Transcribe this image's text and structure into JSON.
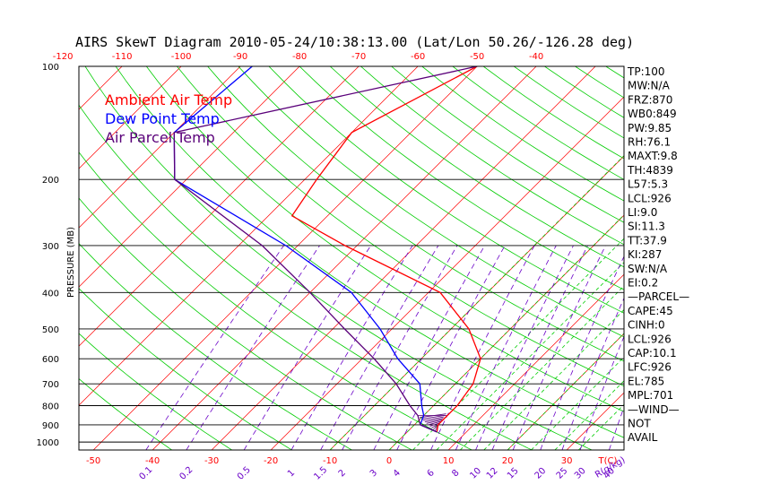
{
  "chart_data": {
    "type": "line",
    "title": "AIRS SkewT Diagram 2010-05-24/10:38:13.00 (Lat/Lon 50.26/-126.28 deg)",
    "ylabel": "PRESSURE (MB)",
    "pressure_ticks": [
      "100",
      "200",
      "300",
      "400",
      "500",
      "600",
      "700",
      "800",
      "900",
      "1000"
    ],
    "top_temp_ticks": [
      "-120",
      "-110",
      "-100",
      "-90",
      "-80",
      "-70",
      "-60",
      "-50",
      "-40"
    ],
    "bottom_temp_ticks": [
      "-50",
      "-40",
      "-30",
      "-20",
      "-10",
      "0",
      "10",
      "20",
      "30"
    ],
    "bottom_axis_label": "T(C)",
    "mixing_ratio_ticks": [
      "0.1",
      "0.2",
      "0.5",
      "1",
      "1.5",
      "2",
      "3",
      "4",
      "6",
      "8",
      "10",
      "12",
      "15",
      "20",
      "25",
      "30",
      "40"
    ],
    "mixing_ratio_label": "R(g/kg)",
    "legend": [
      "Ambient Air Temp",
      "Dew Point Temp",
      "Air Parcel Temp"
    ],
    "colors": {
      "ambient": "#ff0000",
      "dewpoint": "#0000ff",
      "parcel": "#5a007a",
      "isotherm": "#ff0000",
      "dry_adiabat": "#00cc00",
      "moist_adiabat": "#00cc00",
      "mixing_ratio": "#6a00c8",
      "isobar": "#000000"
    },
    "ylim": [
      1050,
      100
    ],
    "y_scale": "log",
    "series": [
      {
        "name": "Ambient Air Temp",
        "points": [
          [
            940,
            5
          ],
          [
            900,
            4
          ],
          [
            850,
            4
          ],
          [
            800,
            4
          ],
          [
            700,
            3
          ],
          [
            600,
            0
          ],
          [
            500,
            -7
          ],
          [
            400,
            -18
          ],
          [
            300,
            -42
          ],
          [
            250,
            -56
          ],
          [
            200,
            -58
          ],
          [
            150,
            -60
          ],
          [
            100,
            -50
          ]
        ]
      },
      {
        "name": "Dew Point Temp",
        "points": [
          [
            940,
            5
          ],
          [
            900,
            1
          ],
          [
            850,
            0
          ],
          [
            800,
            -2
          ],
          [
            700,
            -6
          ],
          [
            600,
            -14
          ],
          [
            500,
            -22
          ],
          [
            400,
            -33
          ],
          [
            300,
            -52
          ],
          [
            200,
            -82
          ],
          [
            150,
            -90
          ],
          [
            100,
            -88
          ]
        ]
      },
      {
        "name": "Air Parcel Temp",
        "points": [
          [
            940,
            5
          ],
          [
            900,
            1
          ],
          [
            850,
            -1
          ],
          [
            800,
            -4
          ],
          [
            700,
            -10
          ],
          [
            600,
            -18
          ],
          [
            500,
            -28
          ],
          [
            400,
            -40
          ],
          [
            300,
            -56
          ],
          [
            200,
            -82
          ],
          [
            150,
            -90
          ],
          [
            100,
            -50
          ]
        ]
      }
    ]
  },
  "indices": [
    "TP:100",
    "MW:N/A",
    "FRZ:870",
    "WB0:849",
    "PW:9.85",
    "RH:76.1",
    "MAXT:9.8",
    "TH:4839",
    "L57:5.3",
    "LCL:926",
    "LI:9.0",
    "SI:11.3",
    "TT:37.9",
    "KI:287",
    "SW:N/A",
    "EI:0.2",
    "—PARCEL—",
    "CAPE:45",
    "CINH:0",
    "LCL:926",
    "CAP:10.1",
    "LFC:926",
    "EL:785",
    "MPL:701",
    "—WIND—",
    "NOT",
    "AVAIL"
  ]
}
